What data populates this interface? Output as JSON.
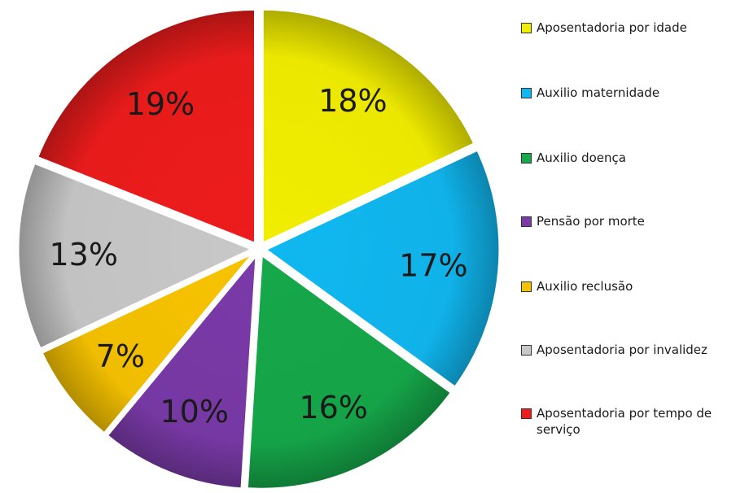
{
  "chart_data": {
    "type": "pie",
    "title": "",
    "legend_position": "right",
    "slices": [
      {
        "name": "Aposentadoria por idade",
        "value": 18,
        "label": "18%",
        "color": "#f2ee00"
      },
      {
        "name": "Auxilio maternidade",
        "value": 17,
        "label": "17%",
        "color": "#10b8f0"
      },
      {
        "name": "Auxilio doença",
        "value": 16,
        "label": "16%",
        "color": "#16a84a"
      },
      {
        "name": "Pensão por morte",
        "value": 10,
        "label": "10%",
        "color": "#7a3aa8"
      },
      {
        "name": "Auxilio reclusão",
        "value": 7,
        "label": "7%",
        "color": "#f7c300"
      },
      {
        "name": "Aposentadoria por invalidez",
        "value": 13,
        "label": "13%",
        "color": "#c8c8c8"
      },
      {
        "name": "Aposentadoria por tempo de serviço",
        "value": 19,
        "label": "19%",
        "color": "#ee1c1c"
      }
    ]
  }
}
